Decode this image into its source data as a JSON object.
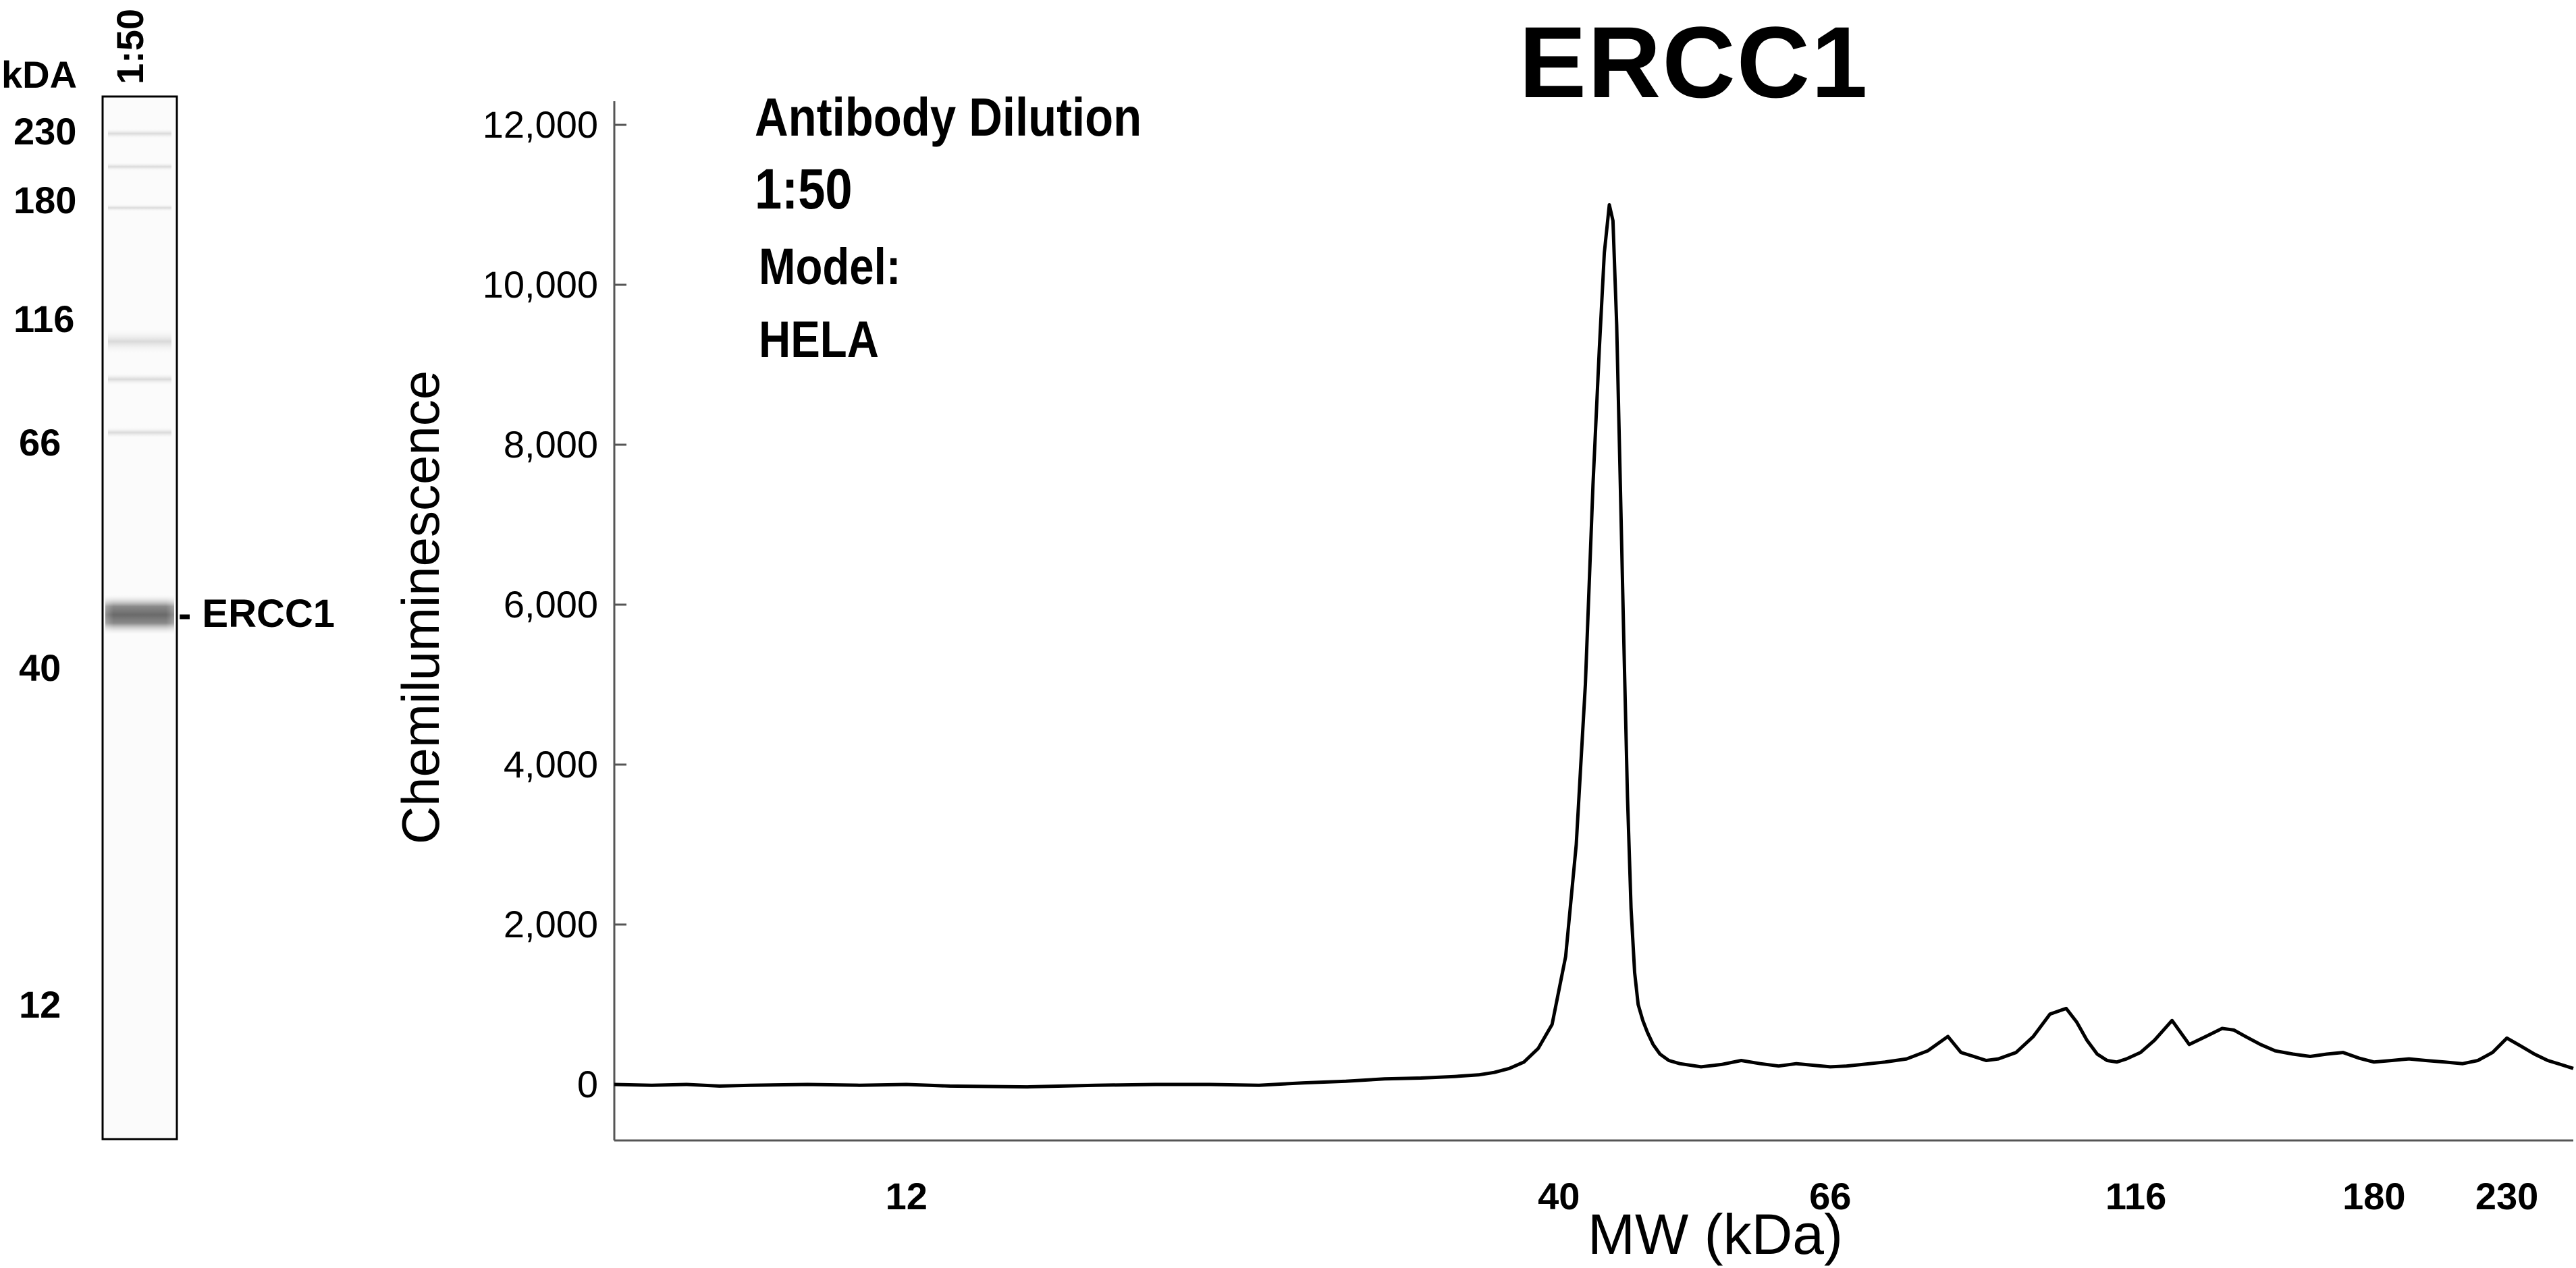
{
  "blot": {
    "unit_label": "kDA",
    "lane_label": "1:50",
    "markers": [
      "230",
      "180",
      "116",
      "66",
      "40",
      "12"
    ],
    "band_label": "- ERCC1"
  },
  "chart_data": {
    "type": "line",
    "title": "ERCC1",
    "annotations": [
      "Antibody Dilution",
      "1:50",
      "Model:",
      "HELA"
    ],
    "xlabel": "MW (kDa)",
    "ylabel": "Chemiluminescence",
    "x_scale": "log",
    "xlim": [
      7,
      260
    ],
    "ylim": [
      -650,
      12000
    ],
    "x_ticks": [
      12,
      40,
      66,
      116,
      180,
      230
    ],
    "y_ticks": [
      0,
      2000,
      4000,
      6000,
      8000,
      10000,
      12000
    ],
    "y_tick_labels": [
      "0",
      "2,000",
      "4,000",
      "6,000",
      "8,000",
      "10,000",
      "12,000"
    ],
    "grid": false,
    "legend": "none",
    "line_color": "#000000",
    "series": [
      {
        "x": [
          7.0,
          7.5,
          8.0,
          8.5,
          9.0,
          10.0,
          11.0,
          12.0,
          13.0,
          15.0,
          17.0,
          19.0,
          21.0,
          23.0,
          25.0,
          27.0,
          29.0,
          31.0,
          33.0,
          34.5,
          35.5,
          36.5,
          37.5,
          38.5,
          39.5,
          40.5,
          41.3,
          42.0,
          42.6,
          43.1,
          43.5,
          43.9,
          44.2,
          44.5,
          44.8,
          45.1,
          45.4,
          45.7,
          46.0,
          46.3,
          46.7,
          47.1,
          47.6,
          48.2,
          49.0,
          50.0,
          52.0,
          54.0,
          56.0,
          58.0,
          60.0,
          62.0,
          64.0,
          66.0,
          68.0,
          70.0,
          73.0,
          76.0,
          79.0,
          82.0,
          84.0,
          86.0,
          88.0,
          90.0,
          93.0,
          96.0,
          99.0,
          102.0,
          104.0,
          106.0,
          108.0,
          110.0,
          112.0,
          114.0,
          117.0,
          120.0,
          124.0,
          128.0,
          132.0,
          136.0,
          139.0,
          142.0,
          146.0,
          150.0,
          155.0,
          160.0,
          165.0,
          170.0,
          175.0,
          180.0,
          186.0,
          192.0,
          198.0,
          205.0,
          212.0,
          218.0,
          224.0,
          230.0,
          236.0,
          242.0,
          248.0,
          254.0,
          260.0
        ],
        "y": [
          0,
          -10,
          0,
          -20,
          -10,
          0,
          -10,
          0,
          -20,
          -30,
          -10,
          0,
          0,
          -10,
          20,
          40,
          70,
          80,
          100,
          120,
          150,
          200,
          280,
          450,
          750,
          1600,
          3000,
          5000,
          7500,
          9200,
          10400,
          11000,
          10800,
          9500,
          7500,
          5500,
          3600,
          2200,
          1400,
          1000,
          800,
          650,
          500,
          380,
          300,
          260,
          220,
          250,
          300,
          260,
          230,
          260,
          240,
          220,
          230,
          250,
          280,
          320,
          420,
          600,
          400,
          350,
          300,
          320,
          400,
          600,
          880,
          950,
          780,
          550,
          380,
          300,
          280,
          320,
          400,
          550,
          800,
          500,
          600,
          700,
          680,
          600,
          500,
          420,
          380,
          350,
          380,
          400,
          330,
          280,
          300,
          320,
          300,
          280,
          260,
          300,
          400,
          580,
          480,
          380,
          300,
          250,
          200
        ]
      }
    ]
  }
}
